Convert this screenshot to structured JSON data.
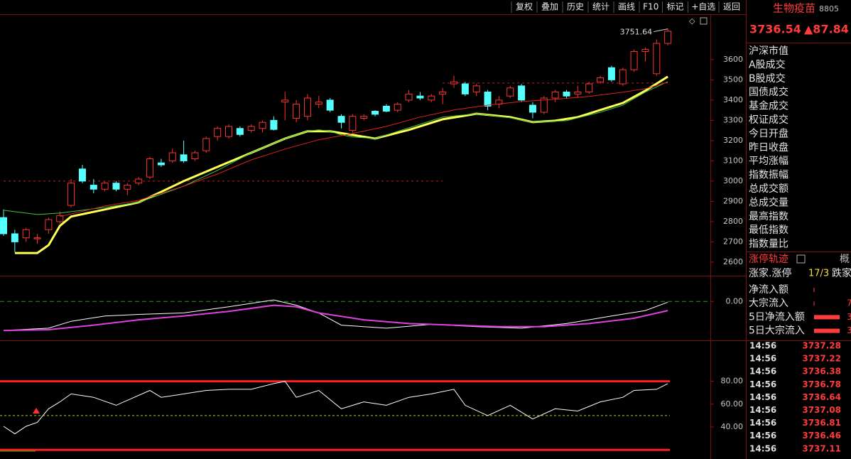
{
  "toolbar": [
    "复权",
    "叠加",
    "历史",
    "统计",
    "画线",
    "F10",
    "标记",
    "+自选",
    "返回"
  ],
  "quote": {
    "name": "生物疫苗",
    "code": "8805",
    "price": "3736.54",
    "change": "▲87.84"
  },
  "chart_data": [
    {
      "type": "candlestick",
      "ylim": [
        2533,
        3824
      ],
      "yticks": [
        2600,
        2700,
        2800,
        2900,
        3000,
        3100,
        3200,
        3300,
        3400,
        3500,
        3600
      ],
      "up_color": "#ff3232",
      "down_color": "#54ffff",
      "open": [
        2820,
        2740,
        2720,
        2715,
        2760,
        2800,
        2880,
        3060,
        2980,
        2960,
        2990,
        2960,
        2990,
        3020,
        3090,
        3100,
        3130,
        3110,
        3150,
        3220,
        3220,
        3260,
        3250,
        3260,
        3300,
        3390,
        3310,
        3320,
        3380,
        3400,
        3320,
        3250,
        3310,
        3345,
        3370,
        3350,
        3400,
        3420,
        3400,
        3430,
        3480,
        3480,
        3440,
        3440,
        3380,
        3420,
        3470,
        3375,
        3340,
        3410,
        3440,
        3430,
        3440,
        3490,
        3560,
        3480,
        3550,
        3640,
        3530,
        3680
      ],
      "high": [
        2860,
        2760,
        2770,
        2740,
        2820,
        2850,
        3010,
        3080,
        3010,
        3000,
        3000,
        2990,
        3020,
        3120,
        3110,
        3160,
        3200,
        3150,
        3220,
        3270,
        3280,
        3270,
        3280,
        3300,
        3320,
        3440,
        3400,
        3430,
        3420,
        3410,
        3330,
        3330,
        3330,
        3350,
        3380,
        3390,
        3450,
        3440,
        3430,
        3460,
        3520,
        3490,
        3480,
        3450,
        3420,
        3470,
        3480,
        3390,
        3420,
        3450,
        3450,
        3470,
        3490,
        3520,
        3570,
        3560,
        3650,
        3660,
        3700,
        3751.64
      ],
      "low": [
        2730,
        2650,
        2700,
        2690,
        2740,
        2790,
        2870,
        2990,
        2940,
        2950,
        2950,
        2930,
        2980,
        3010,
        3070,
        3090,
        3090,
        3100,
        3140,
        3200,
        3210,
        3220,
        3240,
        3240,
        3250,
        3300,
        3290,
        3300,
        3360,
        3340,
        3260,
        3240,
        3300,
        3320,
        3340,
        3340,
        3390,
        3400,
        3390,
        3380,
        3460,
        3420,
        3420,
        3350,
        3360,
        3410,
        3390,
        3310,
        3330,
        3390,
        3410,
        3410,
        3430,
        3480,
        3490,
        3470,
        3540,
        3590,
        3520,
        3670
      ],
      "close": [
        2740,
        2700,
        2760,
        2720,
        2810,
        2830,
        2990,
        3000,
        2960,
        2990,
        2960,
        2980,
        3010,
        3110,
        3080,
        3140,
        3100,
        3140,
        3210,
        3260,
        3270,
        3230,
        3270,
        3290,
        3255,
        3400,
        3380,
        3410,
        3390,
        3350,
        3290,
        3320,
        3320,
        3330,
        3345,
        3380,
        3430,
        3410,
        3420,
        3440,
        3490,
        3430,
        3470,
        3370,
        3400,
        3460,
        3400,
        3340,
        3410,
        3440,
        3420,
        3440,
        3480,
        3510,
        3500,
        3550,
        3640,
        3650,
        3680,
        3740
      ],
      "series": [
        {
          "color": "#ffff54",
          "x": [
            1,
            3,
            4,
            5,
            6,
            9,
            12,
            14,
            16,
            19,
            22,
            25,
            27,
            29,
            31,
            33,
            36,
            39,
            41,
            42,
            45,
            47,
            49,
            51,
            53,
            55,
            57,
            59
          ],
          "values": [
            2645,
            2645,
            2684,
            2779,
            2825,
            2860,
            2895,
            2947,
            3000,
            3070,
            3140,
            3210,
            3246,
            3246,
            3228,
            3210,
            3253,
            3305,
            3323,
            3333,
            3316,
            3291,
            3298,
            3316,
            3351,
            3386,
            3446,
            3516
          ]
        },
        {
          "color": "#3ec43e",
          "x": [
            0,
            3,
            5,
            9,
            12,
            16,
            19,
            22,
            25,
            27,
            28,
            29,
            30,
            31,
            33,
            36,
            39,
            42,
            45,
            47,
            50,
            53,
            55,
            57,
            59
          ],
          "values": [
            2856,
            2835,
            2842,
            2870,
            2895,
            2975,
            3053,
            3140,
            3210,
            3246,
            3253,
            3246,
            3228,
            3218,
            3210,
            3263,
            3316,
            3333,
            3312,
            3291,
            3298,
            3340,
            3375,
            3439,
            3491
          ]
        },
        {
          "color": "#e02020",
          "x": [
            5,
            9,
            12,
            16,
            19,
            22,
            25,
            28,
            31,
            34,
            37,
            40,
            43,
            46,
            49,
            52,
            55,
            57,
            59
          ],
          "values": [
            2825,
            2877,
            2905,
            2975,
            3035,
            3105,
            3158,
            3204,
            3235,
            3270,
            3316,
            3351,
            3375,
            3393,
            3404,
            3418,
            3439,
            3456,
            3488
          ]
        }
      ],
      "ref_lines": [
        {
          "value": 3000,
          "x": [
            0,
            39
          ]
        },
        {
          "value": 3484,
          "x": [
            39,
            59
          ]
        }
      ],
      "annotations": [
        {
          "x": 59,
          "value": 3751.64
        }
      ]
    },
    {
      "type": "line",
      "ylim": [
        -5,
        3
      ],
      "yticks": [
        {
          "value": 0,
          "label": "0.00"
        }
      ],
      "series": [
        {
          "color": "#ffffff",
          "x": [
            0,
            4,
            6,
            9,
            12,
            16,
            20,
            24,
            26,
            28,
            30,
            34,
            38,
            42,
            46,
            50,
            54,
            57,
            59
          ],
          "values": [
            -3.8,
            -3.5,
            -2.6,
            -1.9,
            -1.7,
            -1.5,
            -0.7,
            0.2,
            -0.5,
            -1.5,
            -3.1,
            -3.5,
            -3.0,
            -3.3,
            -3.5,
            -2.9,
            -1.9,
            -1.2,
            -0.1
          ]
        },
        {
          "color": "#e040e0",
          "x": [
            0,
            4,
            8,
            12,
            16,
            20,
            24,
            26,
            28,
            32,
            36,
            40,
            44,
            48,
            52,
            56,
            59
          ],
          "values": [
            -3.8,
            -3.7,
            -3.1,
            -2.4,
            -1.9,
            -1.3,
            -0.5,
            -0.7,
            -1.5,
            -2.4,
            -2.9,
            -3.1,
            -3.3,
            -3.3,
            -2.9,
            -2.2,
            -1.2
          ]
        }
      ]
    },
    {
      "type": "line",
      "ylim": [
        12,
        114
      ],
      "yticks": [
        {
          "value": 40,
          "label": "40.00"
        },
        {
          "value": 60,
          "label": "60.00"
        },
        {
          "value": 80,
          "label": "80.00"
        }
      ],
      "levels": [
        {
          "value": 80,
          "color": "#ff2020"
        },
        {
          "value": 20,
          "color": "#ff2020"
        },
        {
          "value": 50,
          "color": "#c8c800",
          "dashed": true
        }
      ],
      "series": [
        {
          "color": "#ffffff",
          "x": [
            0,
            1,
            2,
            3,
            4,
            5,
            6,
            8,
            10,
            13,
            14,
            16,
            18,
            20,
            22,
            24,
            25,
            26,
            28,
            30,
            32,
            34,
            36,
            38,
            40,
            41,
            43,
            45,
            47,
            49,
            51,
            53,
            55,
            56,
            58,
            59
          ],
          "values": [
            40.6,
            34,
            40.6,
            44,
            56,
            62,
            69,
            66,
            59,
            72,
            66,
            69,
            72,
            73,
            73,
            78,
            80,
            66,
            72,
            56,
            62,
            59,
            66,
            69,
            73,
            59,
            50,
            59,
            47,
            56,
            54,
            62,
            66,
            72,
            73,
            78
          ]
        }
      ]
    }
  ],
  "side_panel": {
    "labels": [
      "沪深市值",
      "A股成交",
      "B股成交",
      "国债成交",
      "基金成交",
      "权证成交",
      "今日开盘",
      "昨日收盘",
      "平均涨幅",
      "指数振幅",
      "总成交额",
      "总成交量",
      "最高指数",
      "最低指数",
      "指数量比"
    ],
    "limit_track": "涨停轨迹",
    "limit_tab": "概",
    "advance": {
      "label": "涨家.涨停",
      "value": "17/3",
      "next": "跌家"
    },
    "flows": [
      {
        "label": "净流入额"
      },
      {
        "label": "大宗流入",
        "value": "7"
      },
      {
        "label": "5日净流入额",
        "value": "3"
      },
      {
        "label": "5日大宗流入",
        "value": "3"
      }
    ]
  },
  "ticks": {
    "times": [
      "14:56",
      "14:56",
      "14:56",
      "14:56",
      "14:56",
      "14:56",
      "14:56",
      "14:56",
      "14:56"
    ],
    "prices": [
      "3737.28",
      "3737.22",
      "3736.38",
      "3736.78",
      "3736.64",
      "3737.08",
      "3736.81",
      "3736.46",
      "3737.11"
    ]
  }
}
